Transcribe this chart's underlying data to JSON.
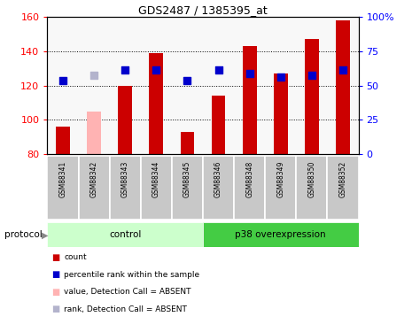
{
  "title": "GDS2487 / 1385395_at",
  "samples": [
    "GSM88341",
    "GSM88342",
    "GSM88343",
    "GSM88344",
    "GSM88345",
    "GSM88346",
    "GSM88348",
    "GSM88349",
    "GSM88350",
    "GSM88352"
  ],
  "bar_values": [
    96,
    105,
    120,
    139,
    93,
    114,
    143,
    127,
    147,
    158
  ],
  "bar_colors": [
    "#cc0000",
    "#ffb3b3",
    "#cc0000",
    "#cc0000",
    "#cc0000",
    "#cc0000",
    "#cc0000",
    "#cc0000",
    "#cc0000",
    "#cc0000"
  ],
  "dot_values": [
    123,
    126,
    129,
    129,
    123,
    129,
    127,
    125,
    126,
    129
  ],
  "dot_colors": [
    "#0000cc",
    "#b3b3cc",
    "#0000cc",
    "#0000cc",
    "#0000cc",
    "#0000cc",
    "#0000cc",
    "#0000cc",
    "#0000cc",
    "#0000cc"
  ],
  "ymin": 80,
  "ymax": 160,
  "yticks": [
    80,
    100,
    120,
    140,
    160
  ],
  "y2ticks_labels": [
    "0",
    "25",
    "50",
    "75",
    "100%"
  ],
  "y2ticks_vals": [
    80,
    100,
    120,
    140,
    160
  ],
  "groups": [
    {
      "label": "control",
      "start": 0,
      "end": 4,
      "color": "#ccffcc"
    },
    {
      "label": "p38 overexpression",
      "start": 5,
      "end": 9,
      "color": "#44cc44"
    }
  ],
  "protocol_label": "protocol",
  "legend": [
    {
      "color": "#cc0000",
      "label": "count"
    },
    {
      "color": "#0000cc",
      "label": "percentile rank within the sample"
    },
    {
      "color": "#ffb3b3",
      "label": "value, Detection Call = ABSENT"
    },
    {
      "color": "#b3b3cc",
      "label": "rank, Detection Call = ABSENT"
    }
  ],
  "bar_width": 0.45,
  "dot_size": 28,
  "grid_yticks": [
    100,
    120,
    140
  ],
  "plot_bg": "#f8f8f8",
  "sample_box_color": "#c8c8c8",
  "sample_box_sep_color": "#ffffff"
}
